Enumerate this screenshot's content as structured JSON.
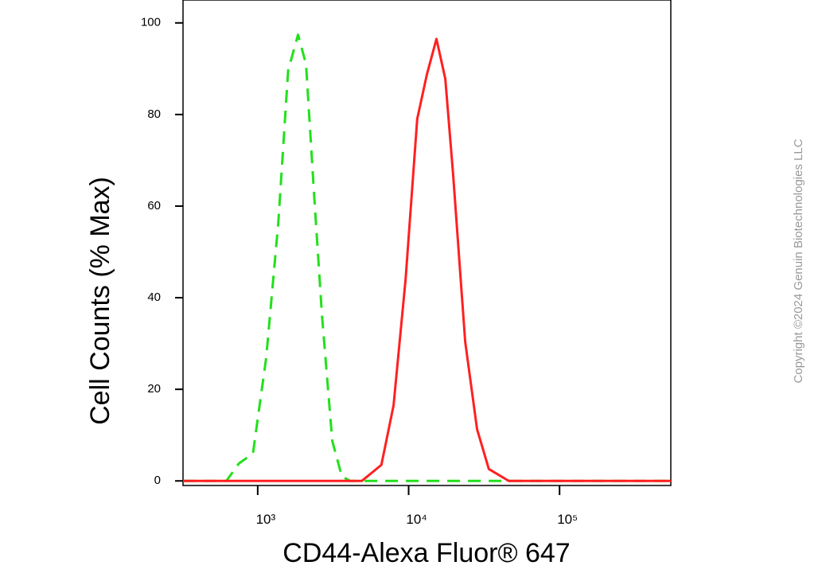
{
  "chart_data": {
    "type": "line",
    "ylabel": "Cell Counts (% Max)",
    "xlabel": "CD44-Alexa Fluor® 647",
    "watermark": "Copyright ©2024 Genuin Biotechnologies LLC",
    "xscale": "log",
    "xlim": [
      320,
      546000
    ],
    "ylim": [
      -1,
      105
    ],
    "xticks": [
      {
        "value": 1000,
        "label": "10³"
      },
      {
        "value": 10000,
        "label": "10⁴"
      },
      {
        "value": 100000,
        "label": "10⁵"
      }
    ],
    "yticks": [
      0,
      20,
      40,
      60,
      80,
      100
    ],
    "series": [
      {
        "color": "#22e01c",
        "dash": true,
        "x": [
          320,
          620,
          750,
          930,
          1140,
          1370,
          1590,
          1850,
          2090,
          2370,
          2670,
          3120,
          3610,
          4080,
          546000
        ],
        "values": [
          0,
          0,
          3.8,
          6,
          27,
          56.5,
          89.6,
          97.4,
          91,
          62,
          36,
          8.7,
          1,
          0,
          0
        ]
      },
      {
        "color": "#ff2020",
        "dash": false,
        "x": [
          320,
          4900,
          6600,
          7950,
          9550,
          11400,
          13200,
          15300,
          17500,
          19700,
          23700,
          28400,
          34000,
          46000,
          546000
        ],
        "values": [
          0,
          0,
          3.5,
          16.5,
          44,
          79,
          88.7,
          96.5,
          87.8,
          67,
          30.4,
          11.3,
          2.6,
          0,
          0
        ]
      }
    ]
  }
}
